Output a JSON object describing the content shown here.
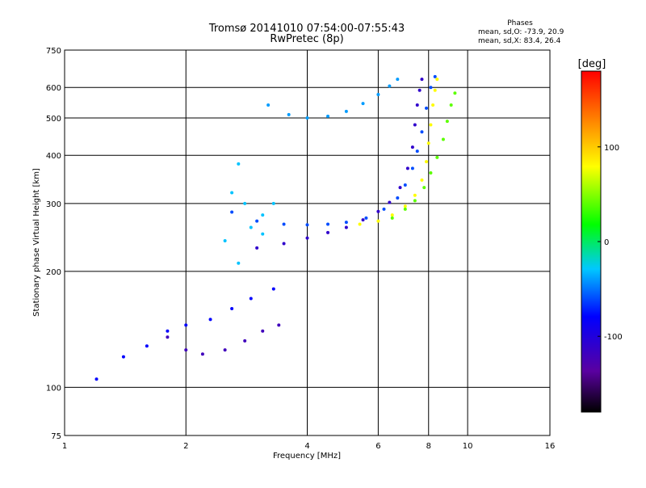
{
  "chart_data": {
    "type": "scatter",
    "title": "Tromsø 20141010 07:54:00-07:55:43",
    "subtitle": "RwPretec (8p)",
    "phase_box": {
      "heading": "Phases",
      "line1": "mean, sd,O: -73.9, 20.9",
      "line2": "mean, sd,X:  83.4, 26.4"
    },
    "xlabel": "Frequency [MHz]",
    "ylabel": "Stationary phase Virtual Height [km]",
    "x_scale": "log",
    "y_scale": "log",
    "xlim": [
      1,
      16
    ],
    "ylim": [
      75,
      750
    ],
    "xticks": [
      1,
      2,
      4,
      6,
      8,
      10,
      16
    ],
    "xtick_labels": [
      "1",
      "2",
      "4",
      "6",
      "8",
      "10",
      "16"
    ],
    "yticks": [
      75,
      100,
      200,
      300,
      400,
      500,
      600,
      750
    ],
    "ytick_labels": [
      "75",
      "100",
      "200",
      "300",
      "400",
      "500",
      "600",
      "750"
    ],
    "x_gridlines": [
      2,
      4,
      6,
      8,
      10
    ],
    "y_gridlines": [
      100,
      200,
      300,
      400,
      500,
      600
    ],
    "colorbar": {
      "label": "[deg]",
      "range": [
        -180,
        180
      ],
      "ticks": [
        100,
        0,
        -100
      ],
      "tick_labels": [
        "100",
        "0",
        "-100"
      ],
      "colormap": "rainbow"
    },
    "traces": [
      {
        "name": "",
        "points": [
          [
            3.0,
            230
          ],
          [
            3.5,
            236
          ],
          [
            4.0,
            244
          ],
          [
            4.5,
            252
          ],
          [
            5.0,
            260
          ],
          [
            5.5,
            272
          ],
          [
            6.0,
            286
          ],
          [
            6.4,
            302
          ],
          [
            6.8,
            330
          ],
          [
            7.1,
            370
          ],
          [
            7.3,
            420
          ],
          [
            7.4,
            480
          ],
          [
            7.5,
            540
          ],
          [
            7.6,
            590
          ],
          [
            7.7,
            630
          ]
        ],
        "phase": -110
      },
      {
        "name": "",
        "points": [
          [
            2.6,
            285
          ],
          [
            3.0,
            270
          ],
          [
            3.5,
            265
          ],
          [
            4.0,
            264
          ],
          [
            4.5,
            265
          ],
          [
            5.0,
            268
          ],
          [
            5.6,
            275
          ],
          [
            6.2,
            290
          ],
          [
            6.7,
            310
          ],
          [
            7.0,
            335
          ],
          [
            7.3,
            370
          ],
          [
            7.5,
            410
          ],
          [
            7.7,
            460
          ],
          [
            7.9,
            530
          ],
          [
            8.1,
            600
          ],
          [
            8.3,
            640
          ]
        ],
        "phase": -60
      },
      {
        "name": "",
        "points": [
          [
            5.4,
            265
          ],
          [
            6.0,
            270
          ],
          [
            6.5,
            280
          ],
          [
            7.0,
            295
          ],
          [
            7.4,
            315
          ],
          [
            7.7,
            345
          ],
          [
            7.9,
            385
          ],
          [
            8.0,
            430
          ],
          [
            8.1,
            480
          ],
          [
            8.2,
            540
          ],
          [
            8.3,
            590
          ],
          [
            8.4,
            630
          ]
        ],
        "phase": 80
      },
      {
        "name": "",
        "points": [
          [
            6.5,
            275
          ],
          [
            7.0,
            290
          ],
          [
            7.4,
            305
          ],
          [
            7.8,
            330
          ],
          [
            8.1,
            360
          ],
          [
            8.4,
            395
          ],
          [
            8.7,
            440
          ],
          [
            8.9,
            490
          ],
          [
            9.1,
            540
          ],
          [
            9.3,
            580
          ]
        ],
        "phase": 40
      },
      {
        "name": "",
        "points": [
          [
            3.2,
            540
          ],
          [
            3.6,
            510
          ],
          [
            4.0,
            500
          ],
          [
            4.5,
            505
          ],
          [
            5.0,
            520
          ],
          [
            5.5,
            545
          ],
          [
            6.0,
            575
          ],
          [
            6.4,
            605
          ],
          [
            6.7,
            630
          ]
        ],
        "phase": -40
      },
      {
        "name": "",
        "points": [
          [
            2.5,
            240
          ],
          [
            2.6,
            320
          ],
          [
            2.7,
            380
          ],
          [
            2.8,
            300
          ],
          [
            2.9,
            260
          ],
          [
            3.1,
            280
          ],
          [
            3.3,
            300
          ],
          [
            3.1,
            250
          ],
          [
            2.7,
            210
          ]
        ],
        "phase": -30
      },
      {
        "name": "",
        "points": [
          [
            1.2,
            105
          ],
          [
            1.4,
            120
          ],
          [
            1.6,
            128
          ],
          [
            1.8,
            140
          ],
          [
            2.0,
            145
          ],
          [
            2.3,
            150
          ],
          [
            2.6,
            160
          ],
          [
            2.9,
            170
          ],
          [
            3.3,
            180
          ]
        ],
        "phase": -80
      },
      {
        "name": "",
        "points": [
          [
            1.8,
            135
          ],
          [
            2.0,
            125
          ],
          [
            2.2,
            122
          ],
          [
            2.5,
            125
          ],
          [
            2.8,
            132
          ],
          [
            3.1,
            140
          ],
          [
            3.4,
            145
          ]
        ],
        "phase": -120
      }
    ]
  }
}
